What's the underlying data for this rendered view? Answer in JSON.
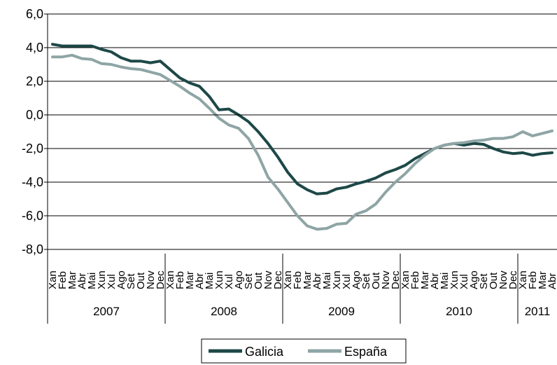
{
  "chart_data": {
    "type": "line",
    "title": "",
    "xlabel": "",
    "ylabel": "",
    "ylim": [
      -8.0,
      6.0
    ],
    "yticks": [
      "6,0",
      "4,0",
      "2,0",
      "0,0",
      "-2,0",
      "-4,0",
      "-6,0",
      "-8,0"
    ],
    "ytick_values": [
      6,
      4,
      2,
      0,
      -2,
      -4,
      -6,
      -8
    ],
    "grid": true,
    "legend_position": "bottom",
    "months": [
      "Xan",
      "Feb",
      "Mar",
      "Abr",
      "Mai",
      "Xun",
      "Xul",
      "Ago",
      "Set",
      "Out",
      "Nov",
      "Dec",
      "Xan",
      "Feb",
      "Mar",
      "Abr",
      "Mai",
      "Xun",
      "Xul",
      "Ago",
      "Set",
      "Out",
      "Nov",
      "Dec",
      "Xan",
      "Feb",
      "Mar",
      "Abr",
      "Mai",
      "Xun",
      "Xul",
      "Ago",
      "Set",
      "Out",
      "Nov",
      "Dec",
      "Xan",
      "Feb",
      "Mar",
      "Abr",
      "Mai",
      "Xun",
      "Xul",
      "Ago",
      "Set",
      "Out",
      "Nov",
      "Dec",
      "Xan",
      "Feb",
      "Mar",
      "Abr"
    ],
    "years": [
      {
        "label": "2007",
        "months": 12
      },
      {
        "label": "2008",
        "months": 12
      },
      {
        "label": "2009",
        "months": 12
      },
      {
        "label": "2010",
        "months": 12
      },
      {
        "label": "2011",
        "months": 4
      }
    ],
    "series": [
      {
        "name": "Galicia",
        "color": "#1e4848",
        "values": [
          4.2,
          4.1,
          4.1,
          4.1,
          4.1,
          3.9,
          3.75,
          3.4,
          3.2,
          3.2,
          3.1,
          3.2,
          2.7,
          2.2,
          1.9,
          1.7,
          1.1,
          0.3,
          0.35,
          0.0,
          -0.4,
          -1.0,
          -1.7,
          -2.5,
          -3.4,
          -4.1,
          -4.45,
          -4.7,
          -4.65,
          -4.4,
          -4.3,
          -4.1,
          -3.95,
          -3.75,
          -3.45,
          -3.25,
          -3.0,
          -2.6,
          -2.3,
          -2.0,
          -1.8,
          -1.7,
          -1.8,
          -1.7,
          -1.75,
          -2.0,
          -2.2,
          -2.3,
          -2.25,
          -2.4,
          -2.3,
          -2.25
        ]
      },
      {
        "name": "España",
        "color": "#8fa5a5",
        "values": [
          3.45,
          3.45,
          3.55,
          3.35,
          3.3,
          3.05,
          3.0,
          2.85,
          2.75,
          2.7,
          2.55,
          2.4,
          2.05,
          1.7,
          1.3,
          0.95,
          0.4,
          -0.2,
          -0.6,
          -0.8,
          -1.4,
          -2.4,
          -3.7,
          -4.4,
          -5.2,
          -6.0,
          -6.6,
          -6.8,
          -6.75,
          -6.5,
          -6.45,
          -5.9,
          -5.7,
          -5.3,
          -4.6,
          -4.0,
          -3.5,
          -2.9,
          -2.4,
          -2.0,
          -1.8,
          -1.7,
          -1.65,
          -1.55,
          -1.5,
          -1.4,
          -1.4,
          -1.3,
          -1.0,
          -1.25,
          -1.1,
          -0.95
        ]
      }
    ]
  }
}
